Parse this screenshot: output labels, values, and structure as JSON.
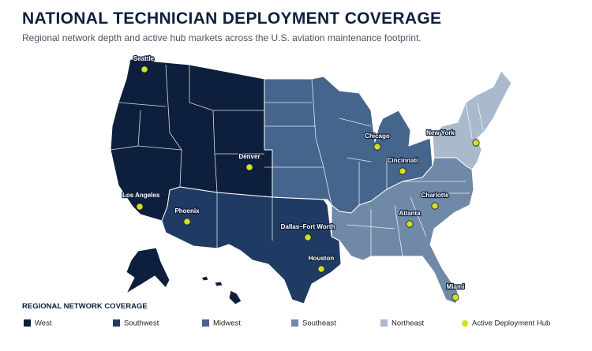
{
  "title": "NATIONAL TECHNICIAN DEPLOYMENT COVERAGE",
  "subtitle": "Regional network depth and active hub markets across the U.S. aviation maintenance footprint.",
  "hubs": [
    "Seattle",
    "Los Angeles",
    "Phoenix",
    "Denver",
    "Dallas–Fort Worth",
    "Houston",
    "Chicago",
    "Cincinnati",
    "Atlanta",
    "Charlotte",
    "New York",
    "Miami"
  ],
  "legend": {
    "title": "REGIONAL NETWORK COVERAGE",
    "regions": [
      {
        "label": "West",
        "color": "#0e1f3d"
      },
      {
        "label": "Southwest",
        "color": "#1f3b63"
      },
      {
        "label": "Midwest",
        "color": "#46658c"
      },
      {
        "label": "Southeast",
        "color": "#7089a6"
      },
      {
        "label": "Northeast",
        "color": "#a9bacc"
      }
    ],
    "hub": {
      "label": "Active Deployment Hub",
      "color": "#d4e021"
    }
  }
}
